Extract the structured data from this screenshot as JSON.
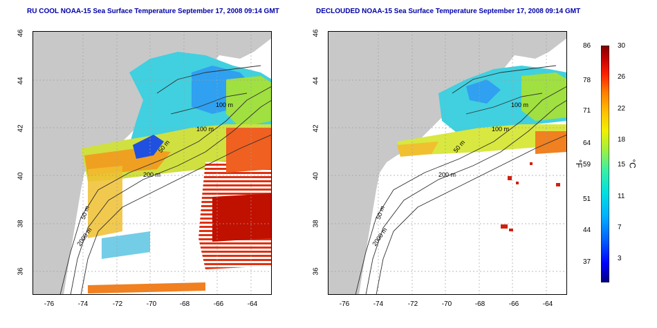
{
  "titles": {
    "left": "RU COOL NOAA-15 Sea Surface Temperature September 17, 2008 09:14 GMT",
    "right": "DECLOUDED NOAA-15 Sea Surface Temperature September 17, 2008 09:14 GMT"
  },
  "axes": {
    "x_ticks": [
      "-76",
      "-74",
      "-72",
      "-70",
      "-68",
      "-66",
      "-64"
    ],
    "y_ticks": [
      "46",
      "44",
      "42",
      "40",
      "38",
      "36"
    ]
  },
  "contours": {
    "c100a": "100 m",
    "c100b": "100 m",
    "c50": "50 m",
    "c200": "200 m",
    "c50b": "50 m",
    "c2000": "2000 m"
  },
  "colorbar": {
    "fahrenheit_unit": "°F",
    "celsius_unit": "°C",
    "fahrenheit": [
      "86",
      "78",
      "71",
      "64",
      "59",
      "51",
      "44",
      "37"
    ],
    "celsius": [
      "30",
      "26",
      "22",
      "18",
      "15",
      "11",
      "7",
      "3"
    ],
    "colors": [
      "#000080",
      "#0000ff",
      "#0080ff",
      "#00c0ff",
      "#00e0e0",
      "#40f0a0",
      "#a0f040",
      "#f0f000",
      "#ffc000",
      "#ff8000",
      "#ff2000",
      "#c00000",
      "#800000"
    ]
  },
  "colors": {
    "land": "#c8c8c8",
    "grid": "#a0a0a0",
    "title": "#0000a8"
  }
}
